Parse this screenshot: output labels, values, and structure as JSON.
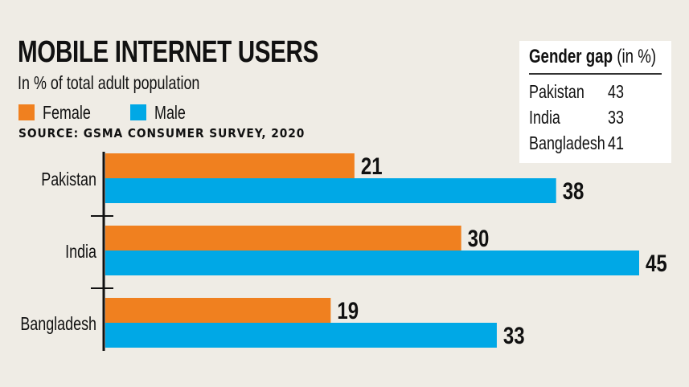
{
  "chart_data": {
    "type": "bar",
    "orientation": "horizontal",
    "title": "MOBILE INTERNET USERS",
    "subtitle": "In % of total adult population",
    "source": "SOURCE: GSMA CONSUMER SURVEY, 2020",
    "categories": [
      "Pakistan",
      "India",
      "Bangladesh"
    ],
    "series": [
      {
        "name": "Female",
        "color": "#f0801f",
        "values": [
          21,
          30,
          19
        ]
      },
      {
        "name": "Male",
        "color": "#00a8e6",
        "values": [
          38,
          45,
          33
        ]
      }
    ],
    "legend": "top-left",
    "grid": false,
    "xlim": [
      0,
      45
    ],
    "data_labels": true
  },
  "gender_gap": {
    "title_bold": "Gender gap",
    "title_unit": "(in %)",
    "rows": [
      {
        "country": "Pakistan",
        "value": "43"
      },
      {
        "country": "India",
        "value": "33"
      },
      {
        "country": "Bangladesh",
        "value": "41"
      }
    ]
  }
}
